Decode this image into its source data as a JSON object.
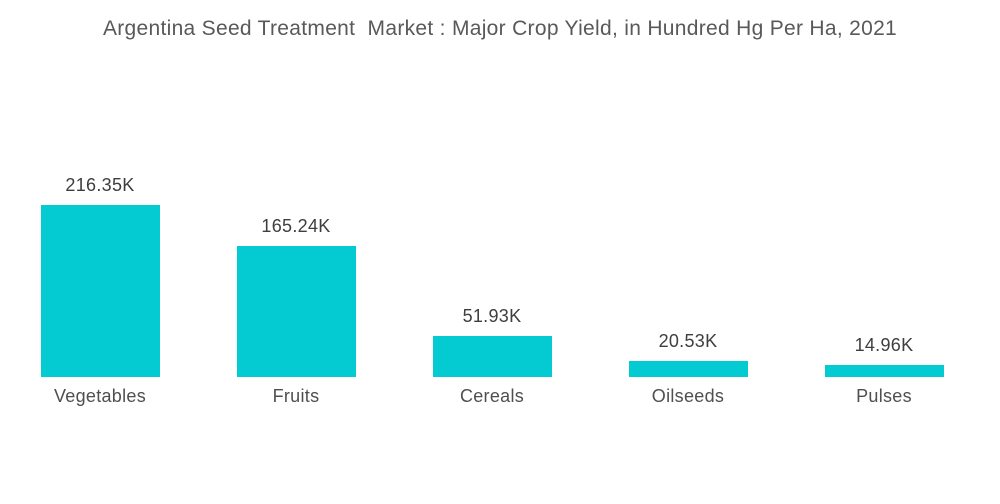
{
  "chart_data": {
    "type": "bar",
    "title": "Argentina Seed Treatment  Market : Major Crop Yield, in Hundred Hg Per Ha, 2021",
    "categories": [
      "Vegetables",
      "Fruits",
      "Cereals",
      "Oilseeds",
      "Pulses"
    ],
    "values": [
      216350,
      165240,
      51930,
      20530,
      14960
    ],
    "value_labels": [
      "216.35K",
      "165.24K",
      "51.93K",
      "20.53K",
      "14.96K"
    ],
    "xlabel": "",
    "ylabel": "",
    "ylim": [
      0,
      216350
    ],
    "grid": false,
    "legend": false,
    "orientation": "vertical",
    "bar_color": "#04CBD2",
    "title_color": "#58595b",
    "value_label_color": "#3d3e40",
    "category_label_color": "#4e4f51",
    "background_color": "#ffffff"
  }
}
